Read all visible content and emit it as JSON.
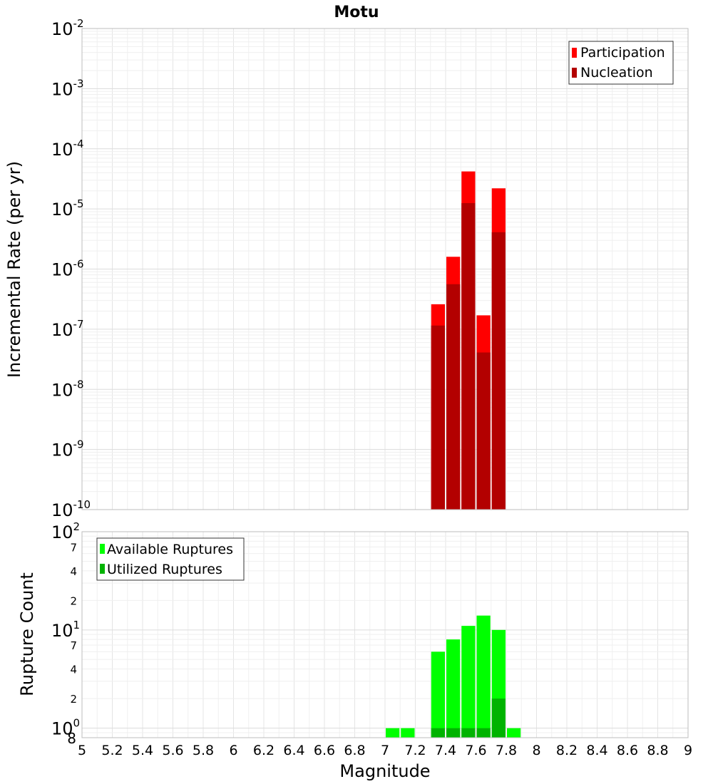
{
  "chart_data": [
    {
      "type": "bar",
      "title": "Motu",
      "xlabel": "Magnitude",
      "ylabel": "Incremental Rate (per yr)",
      "xlim": [
        5,
        9
      ],
      "ylim": [
        1e-10,
        0.01
      ],
      "yscale": "log",
      "ytick_exponents": [
        "-10",
        "-9",
        "-8",
        "-7",
        "-6",
        "-5",
        "-4",
        "-3",
        "-2"
      ],
      "bin_width": 0.1,
      "x": [
        7.35,
        7.45,
        7.55,
        7.65,
        7.75
      ],
      "series": [
        {
          "name": "Participation",
          "color": "#ff0000",
          "values": [
            2.6e-07,
            1.6e-06,
            4.2e-05,
            1.7e-07,
            2.2e-05
          ]
        },
        {
          "name": "Nucleation",
          "color": "#b30000",
          "values": [
            1.15e-07,
            5.6e-07,
            1.25e-05,
            4.1e-08,
            4.1e-06
          ]
        }
      ],
      "legend": [
        "Participation",
        "Nucleation"
      ],
      "legend_position": "top-right"
    },
    {
      "type": "bar",
      "xlabel": "Magnitude",
      "ylabel": "Rupture Count",
      "xlim": [
        5,
        9
      ],
      "ylim": [
        0.8,
        100
      ],
      "yscale": "log",
      "major_ticks": [
        {
          "base": "10",
          "exp": "0"
        },
        {
          "base": "10",
          "exp": "1"
        },
        {
          "base": "10",
          "exp": "2"
        }
      ],
      "minor_tick_labels": [
        "8",
        "2",
        "4",
        "7",
        "2",
        "4",
        "7"
      ],
      "bin_width": 0.1,
      "x": [
        7.05,
        7.15,
        7.35,
        7.45,
        7.55,
        7.65,
        7.75,
        7.85
      ],
      "series": [
        {
          "name": "Available Ruptures",
          "color": "#00ff00",
          "values": [
            1,
            1,
            6,
            8,
            11,
            14,
            10,
            1
          ]
        },
        {
          "name": "Utilized Ruptures",
          "color": "#00b300",
          "values": [
            0,
            0,
            1,
            1,
            1,
            1,
            2,
            0
          ]
        }
      ],
      "legend": [
        "Available Ruptures",
        "Utilized Ruptures"
      ],
      "legend_position": "top-left"
    }
  ],
  "x_tick_labels": [
    "5",
    "5.2",
    "5.4",
    "5.6",
    "5.8",
    "6",
    "6.2",
    "6.4",
    "6.6",
    "6.8",
    "7",
    "7.2",
    "7.4",
    "7.6",
    "7.8",
    "8",
    "8.2",
    "8.4",
    "8.6",
    "8.8",
    "9"
  ]
}
